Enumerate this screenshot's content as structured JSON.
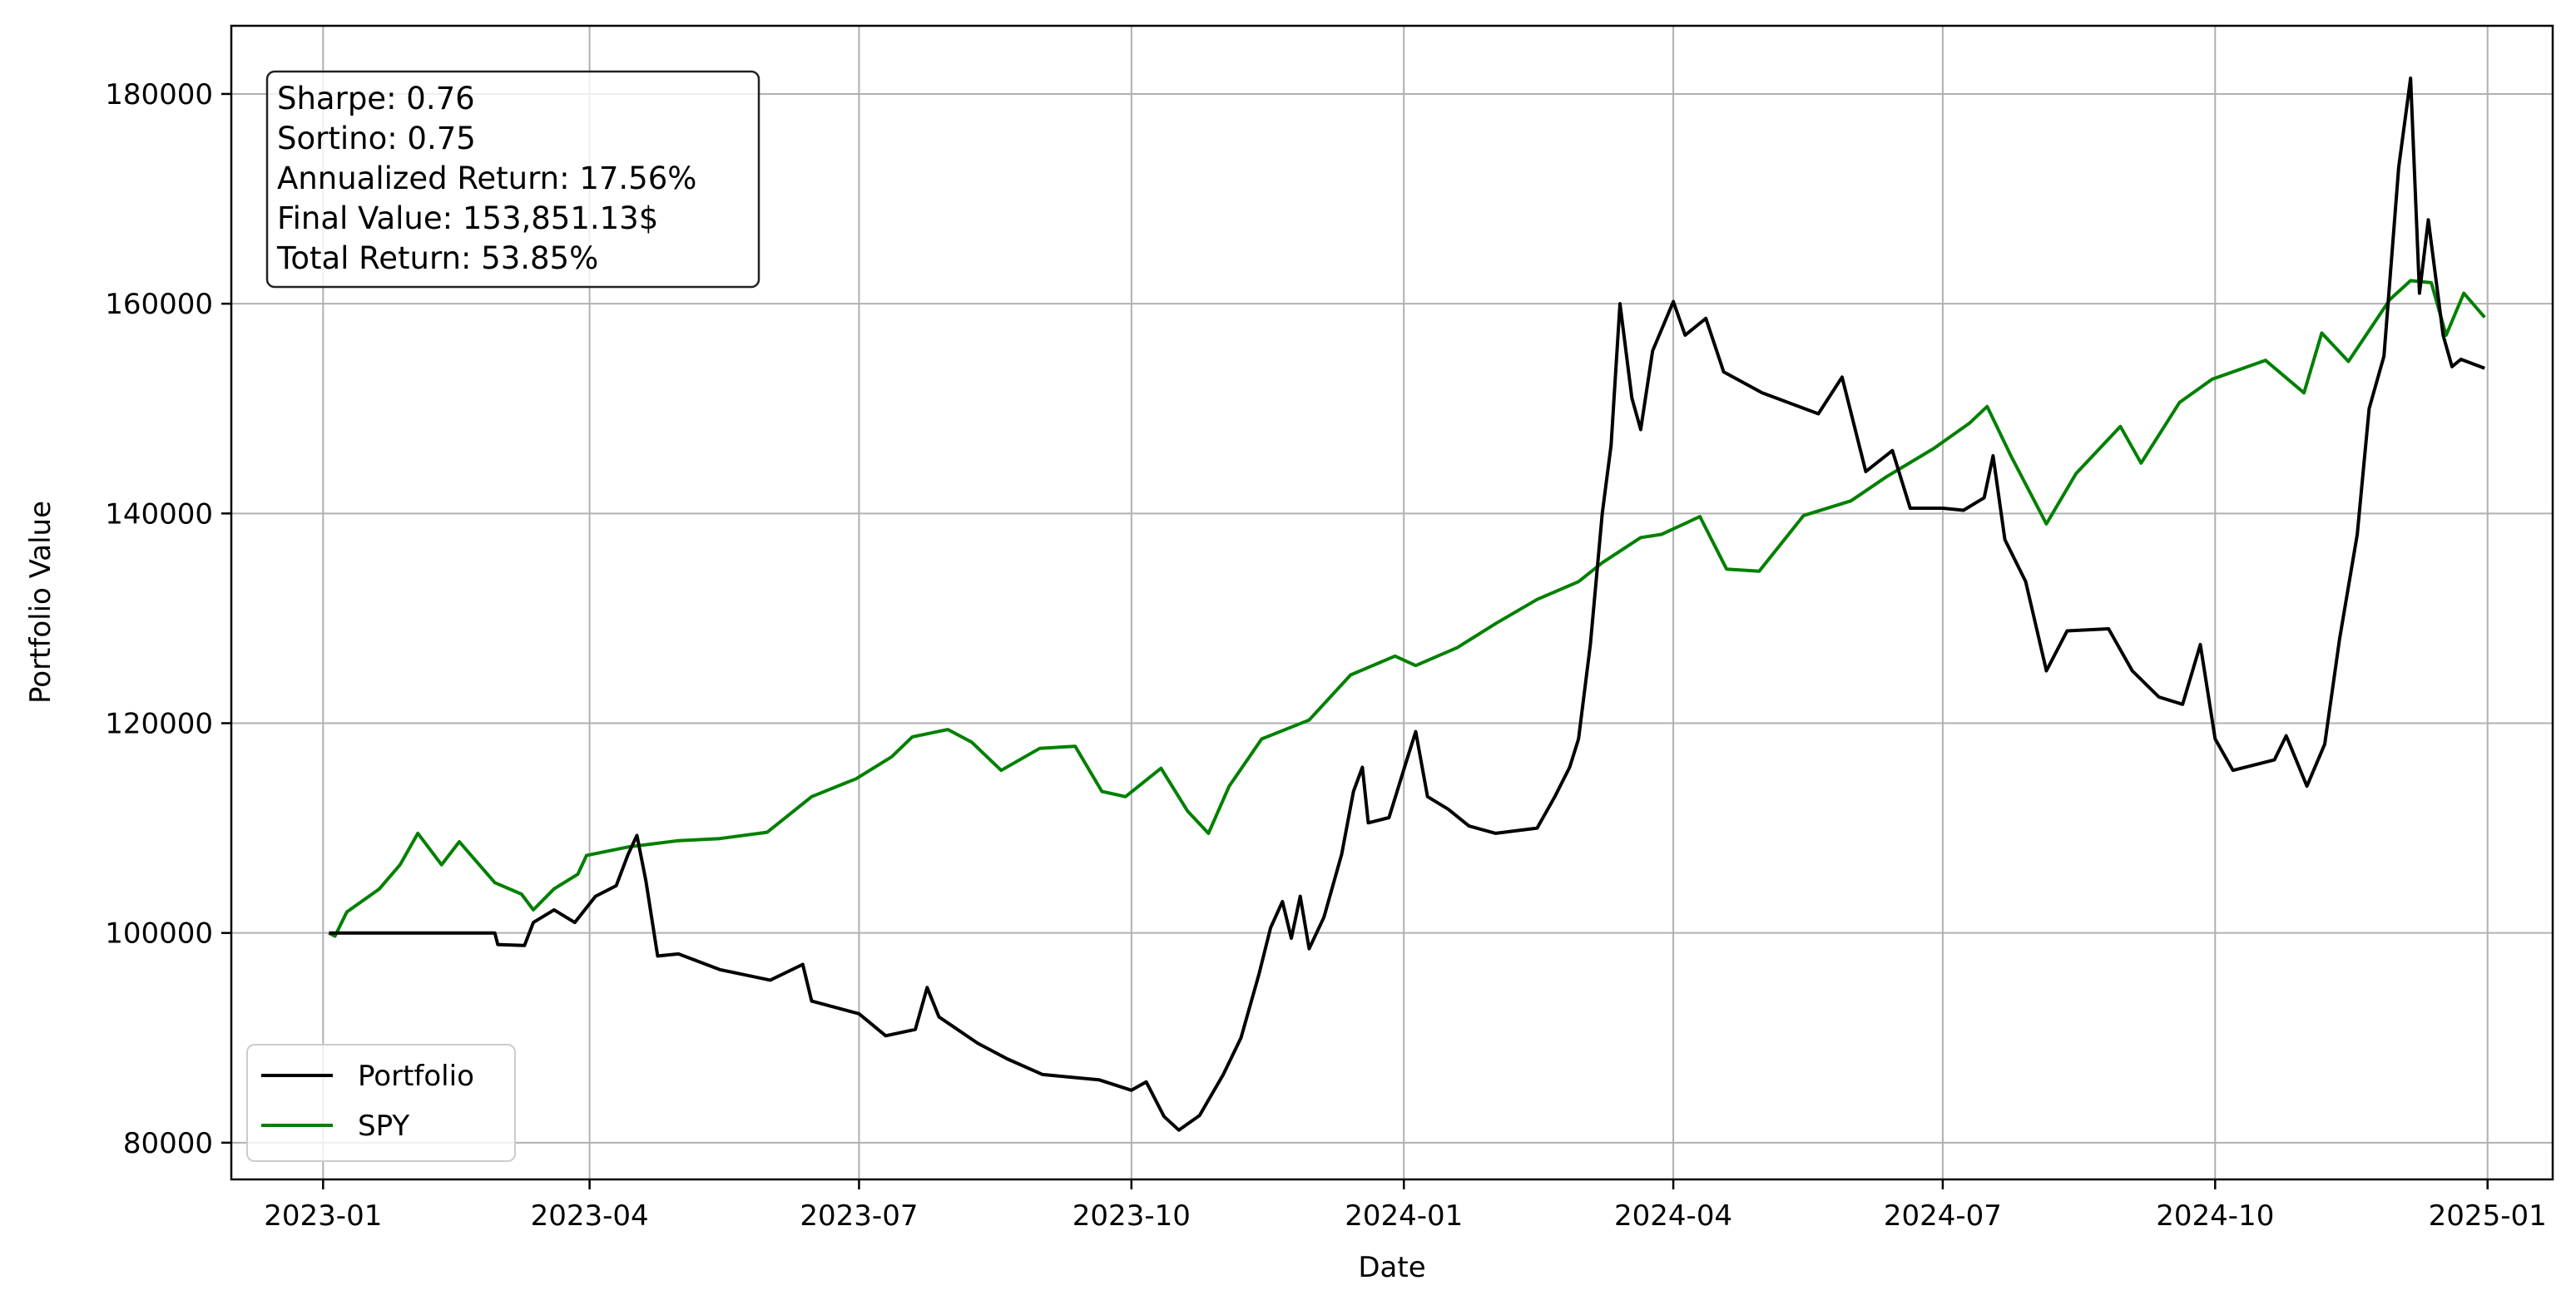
{
  "chart_data": {
    "type": "line",
    "xlabel": "Date",
    "ylabel": "Portfolio Value",
    "x_range": [
      "2022-12-01",
      "2025-01-23"
    ],
    "ylim": [
      76500,
      186500
    ],
    "x_ticks": [
      "2023-01",
      "2023-04",
      "2023-07",
      "2023-10",
      "2024-01",
      "2024-04",
      "2024-07",
      "2024-10",
      "2025-01"
    ],
    "x_tick_labels": [
      "2023-01",
      "2023-04",
      "2023-07",
      "2023-10",
      "2024-01",
      "2024-04",
      "2024-07",
      "2024-10",
      "2025-01"
    ],
    "y_ticks": [
      80000,
      100000,
      120000,
      140000,
      160000,
      180000
    ],
    "y_tick_labels": [
      "80000",
      "100000",
      "120000",
      "140000",
      "160000",
      "180000"
    ],
    "grid": true,
    "legend_position": "lower-left",
    "stats": [
      "Sharpe: 0.76",
      "Sortino: 0.75",
      "Annualized Return: 17.56%",
      "Final Value: 153,851.13$",
      "Total Return: 53.85%"
    ],
    "series": [
      {
        "name": "Portfolio",
        "color": "#000000",
        "points": [
          [
            "2023-01-03",
            100000
          ],
          [
            "2023-02-01",
            100000
          ],
          [
            "2023-02-28",
            100000
          ],
          [
            "2023-03-01",
            98900
          ],
          [
            "2023-03-10",
            98800
          ],
          [
            "2023-03-13",
            101000
          ],
          [
            "2023-03-20",
            102200
          ],
          [
            "2023-03-27",
            101000
          ],
          [
            "2023-04-03",
            103500
          ],
          [
            "2023-04-10",
            104500
          ],
          [
            "2023-04-14",
            107500
          ],
          [
            "2023-04-17",
            109300
          ],
          [
            "2023-04-20",
            105000
          ],
          [
            "2023-04-24",
            97800
          ],
          [
            "2023-05-01",
            98000
          ],
          [
            "2023-05-15",
            96500
          ],
          [
            "2023-06-01",
            95500
          ],
          [
            "2023-06-12",
            97000
          ],
          [
            "2023-06-15",
            93500
          ],
          [
            "2023-07-01",
            92300
          ],
          [
            "2023-07-10",
            90200
          ],
          [
            "2023-07-20",
            90800
          ],
          [
            "2023-07-24",
            94800
          ],
          [
            "2023-07-28",
            92000
          ],
          [
            "2023-08-10",
            89500
          ],
          [
            "2023-08-20",
            88000
          ],
          [
            "2023-09-01",
            86500
          ],
          [
            "2023-09-20",
            86000
          ],
          [
            "2023-10-01",
            85000
          ],
          [
            "2023-10-06",
            85800
          ],
          [
            "2023-10-12",
            82500
          ],
          [
            "2023-10-17",
            81200
          ],
          [
            "2023-10-24",
            82600
          ],
          [
            "2023-11-01",
            86500
          ],
          [
            "2023-11-07",
            90000
          ],
          [
            "2023-11-13",
            96000
          ],
          [
            "2023-11-17",
            100500
          ],
          [
            "2023-11-21",
            103000
          ],
          [
            "2023-11-24",
            99500
          ],
          [
            "2023-11-27",
            103500
          ],
          [
            "2023-11-30",
            98500
          ],
          [
            "2023-12-05",
            101500
          ],
          [
            "2023-12-11",
            107500
          ],
          [
            "2023-12-15",
            113500
          ],
          [
            "2023-12-18",
            115800
          ],
          [
            "2023-12-20",
            110500
          ],
          [
            "2023-12-27",
            111000
          ],
          [
            "2024-01-02",
            116500
          ],
          [
            "2024-01-05",
            119200
          ],
          [
            "2024-01-09",
            113000
          ],
          [
            "2024-01-16",
            111800
          ],
          [
            "2024-01-23",
            110200
          ],
          [
            "2024-02-01",
            109500
          ],
          [
            "2024-02-15",
            110000
          ],
          [
            "2024-02-21",
            113000
          ],
          [
            "2024-02-26",
            115800
          ],
          [
            "2024-02-29",
            118500
          ],
          [
            "2024-03-04",
            127500
          ],
          [
            "2024-03-08",
            140000
          ],
          [
            "2024-03-11",
            146500
          ],
          [
            "2024-03-14",
            160000
          ],
          [
            "2024-03-18",
            151000
          ],
          [
            "2024-03-21",
            148000
          ],
          [
            "2024-03-25",
            155500
          ],
          [
            "2024-04-01",
            160200
          ],
          [
            "2024-04-05",
            157000
          ],
          [
            "2024-04-12",
            158600
          ],
          [
            "2024-04-18",
            153500
          ],
          [
            "2024-05-01",
            151500
          ],
          [
            "2024-05-20",
            149500
          ],
          [
            "2024-05-28",
            153000
          ],
          [
            "2024-06-05",
            144000
          ],
          [
            "2024-06-14",
            146000
          ],
          [
            "2024-06-20",
            140500
          ],
          [
            "2024-07-01",
            140500
          ],
          [
            "2024-07-08",
            140300
          ],
          [
            "2024-07-15",
            141500
          ],
          [
            "2024-07-18",
            145500
          ],
          [
            "2024-07-22",
            137500
          ],
          [
            "2024-07-29",
            133500
          ],
          [
            "2024-08-05",
            125000
          ],
          [
            "2024-08-12",
            128800
          ],
          [
            "2024-08-26",
            129000
          ],
          [
            "2024-09-03",
            125000
          ],
          [
            "2024-09-12",
            122500
          ],
          [
            "2024-09-20",
            121800
          ],
          [
            "2024-09-26",
            127500
          ],
          [
            "2024-10-01",
            118500
          ],
          [
            "2024-10-07",
            115500
          ],
          [
            "2024-10-21",
            116500
          ],
          [
            "2024-10-25",
            118800
          ],
          [
            "2024-11-01",
            114000
          ],
          [
            "2024-11-07",
            118000
          ],
          [
            "2024-11-12",
            128000
          ],
          [
            "2024-11-18",
            138000
          ],
          [
            "2024-11-22",
            150000
          ],
          [
            "2024-11-27",
            155000
          ],
          [
            "2024-12-02",
            173000
          ],
          [
            "2024-12-06",
            181500
          ],
          [
            "2024-12-09",
            161000
          ],
          [
            "2024-12-12",
            168000
          ],
          [
            "2024-12-17",
            157000
          ],
          [
            "2024-12-20",
            154000
          ],
          [
            "2024-12-23",
            154700
          ],
          [
            "2024-12-31",
            153851
          ]
        ]
      },
      {
        "name": "SPY",
        "color": "#008000",
        "points": [
          [
            "2023-01-03",
            100000
          ],
          [
            "2023-01-05",
            99700
          ],
          [
            "2023-01-09",
            102000
          ],
          [
            "2023-01-20",
            104200
          ],
          [
            "2023-01-27",
            106500
          ],
          [
            "2023-02-02",
            109500
          ],
          [
            "2023-02-10",
            106500
          ],
          [
            "2023-02-16",
            108700
          ],
          [
            "2023-02-28",
            104800
          ],
          [
            "2023-03-09",
            103700
          ],
          [
            "2023-03-13",
            102200
          ],
          [
            "2023-03-20",
            104200
          ],
          [
            "2023-03-28",
            105600
          ],
          [
            "2023-03-31",
            107400
          ],
          [
            "2023-04-14",
            108200
          ],
          [
            "2023-05-01",
            108800
          ],
          [
            "2023-05-15",
            109000
          ],
          [
            "2023-05-31",
            109600
          ],
          [
            "2023-06-15",
            113000
          ],
          [
            "2023-06-30",
            114700
          ],
          [
            "2023-07-12",
            116800
          ],
          [
            "2023-07-19",
            118700
          ],
          [
            "2023-07-31",
            119400
          ],
          [
            "2023-08-08",
            118200
          ],
          [
            "2023-08-18",
            115500
          ],
          [
            "2023-08-31",
            117600
          ],
          [
            "2023-09-12",
            117800
          ],
          [
            "2023-09-21",
            113500
          ],
          [
            "2023-09-29",
            113000
          ],
          [
            "2023-10-11",
            115700
          ],
          [
            "2023-10-20",
            111600
          ],
          [
            "2023-10-27",
            109500
          ],
          [
            "2023-11-03",
            114000
          ],
          [
            "2023-11-14",
            118500
          ],
          [
            "2023-11-30",
            120300
          ],
          [
            "2023-12-14",
            124600
          ],
          [
            "2023-12-29",
            126400
          ],
          [
            "2024-01-05",
            125500
          ],
          [
            "2024-01-19",
            127200
          ],
          [
            "2024-02-01",
            129500
          ],
          [
            "2024-02-15",
            131800
          ],
          [
            "2024-02-29",
            133500
          ],
          [
            "2024-03-08",
            135300
          ],
          [
            "2024-03-21",
            137700
          ],
          [
            "2024-03-28",
            138000
          ],
          [
            "2024-04-10",
            139700
          ],
          [
            "2024-04-19",
            134700
          ],
          [
            "2024-04-30",
            134500
          ],
          [
            "2024-05-15",
            139800
          ],
          [
            "2024-05-31",
            141200
          ],
          [
            "2024-06-12",
            143500
          ],
          [
            "2024-06-28",
            146200
          ],
          [
            "2024-07-10",
            148600
          ],
          [
            "2024-07-16",
            150200
          ],
          [
            "2024-07-24",
            145500
          ],
          [
            "2024-08-05",
            139000
          ],
          [
            "2024-08-15",
            143800
          ],
          [
            "2024-08-30",
            148300
          ],
          [
            "2024-09-06",
            144800
          ],
          [
            "2024-09-19",
            150600
          ],
          [
            "2024-09-30",
            152800
          ],
          [
            "2024-10-18",
            154600
          ],
          [
            "2024-10-31",
            151500
          ],
          [
            "2024-11-06",
            157200
          ],
          [
            "2024-11-15",
            154500
          ],
          [
            "2024-11-29",
            160400
          ],
          [
            "2024-12-06",
            162200
          ],
          [
            "2024-12-13",
            162000
          ],
          [
            "2024-12-18",
            157000
          ],
          [
            "2024-12-24",
            161000
          ],
          [
            "2024-12-31",
            158700
          ]
        ]
      }
    ]
  }
}
